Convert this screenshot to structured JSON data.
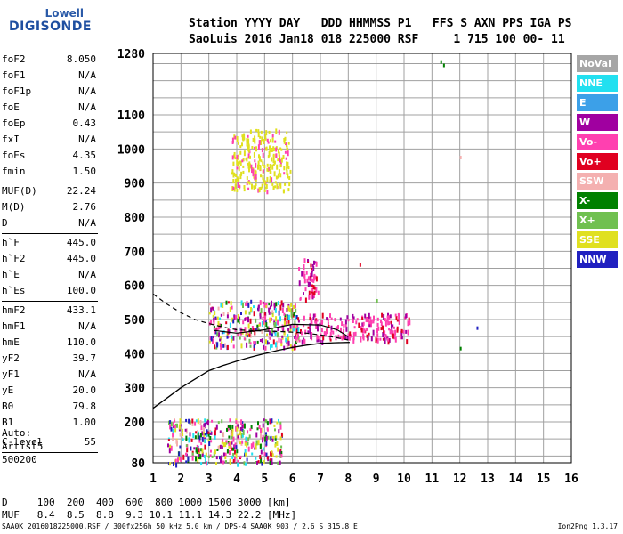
{
  "logo": {
    "line1": "Lowell",
    "line2": "DIGISONDE"
  },
  "header": {
    "line1": "Station YYYY DAY   DDD HHMMSS P1   FFS S AXN PPS IGA PS",
    "line2": "SaoLuis 2016 Jan18 018 225000 RSF     1 715 100 00- 11"
  },
  "params": [
    {
      "k": "foF2",
      "v": "8.050"
    },
    {
      "k": "foF1",
      "v": "N/A"
    },
    {
      "k": "foF1p",
      "v": "N/A"
    },
    {
      "k": "foE",
      "v": "N/A"
    },
    {
      "k": "foEp",
      "v": "0.43"
    },
    {
      "k": "fxI",
      "v": "N/A"
    },
    {
      "k": "foEs",
      "v": "4.35"
    },
    {
      "k": "fmin",
      "v": "1.50"
    },
    {
      "sep": true
    },
    {
      "k": "MUF(D)",
      "v": "22.24"
    },
    {
      "k": "M(D)",
      "v": "2.76"
    },
    {
      "k": "D",
      "v": "N/A"
    },
    {
      "sep": true
    },
    {
      "k": "h`F",
      "v": "445.0"
    },
    {
      "k": "h`F2",
      "v": "445.0"
    },
    {
      "k": "h`E",
      "v": "N/A"
    },
    {
      "k": "h`Es",
      "v": "100.0"
    },
    {
      "sep": true
    },
    {
      "k": "hmF2",
      "v": "433.1"
    },
    {
      "k": "hmF1",
      "v": "N/A"
    },
    {
      "k": "hmE",
      "v": "110.0"
    },
    {
      "k": "yF2",
      "v": "39.7"
    },
    {
      "k": "yF1",
      "v": "N/A"
    },
    {
      "k": "yE",
      "v": "20.0"
    },
    {
      "k": "B0",
      "v": "79.8"
    },
    {
      "k": "B1",
      "v": "1.00"
    },
    {
      "sep": true
    },
    {
      "k": "C-level",
      "v": "55"
    },
    {
      "sep": true
    }
  ],
  "auto": {
    "line1": "Auto:",
    "line2": "Artist5",
    "line3": "500200"
  },
  "legend": [
    {
      "label": "NoVal",
      "color": "#a6a6a6"
    },
    {
      "label": "NNE",
      "color": "#22e0f0"
    },
    {
      "label": "E",
      "color": "#3ca0e8"
    },
    {
      "label": "W",
      "color": "#a000a0"
    },
    {
      "label": "Vo-",
      "color": "#ff40b0"
    },
    {
      "label": "Vo+",
      "color": "#e00020"
    },
    {
      "label": "SSW",
      "color": "#f4b0b0"
    },
    {
      "label": "X-",
      "color": "#008000"
    },
    {
      "label": "X+",
      "color": "#70c050"
    },
    {
      "label": "SSE",
      "color": "#e0e020"
    },
    {
      "label": "NNW",
      "color": "#2020c0"
    }
  ],
  "dtable": {
    "row1": "D     100  200  400  600  800 1000 1500 3000 [km]",
    "row2": "MUF   8.4  8.5  8.8  9.3 10.1 11.1 14.3 22.2 [MHz]"
  },
  "footer": "SAA0K_2016018225000.RSF / 300fx256h 50 kHz 5.0 km / DPS-4 SAA0K 903 / 2.6 S 315.8 E",
  "version": "Ion2Png 1.3.17",
  "chart_data": {
    "type": "scatter",
    "xlabel": "",
    "ylabel": "",
    "xlim": [
      1,
      16
    ],
    "ylim": [
      80,
      1280
    ],
    "x_ticks": [
      1,
      2,
      3,
      4,
      5,
      6,
      7,
      8,
      9,
      10,
      11,
      12,
      13,
      14,
      15,
      16
    ],
    "y_ticks": [
      80,
      200,
      300,
      400,
      500,
      600,
      700,
      800,
      900,
      1000,
      1100,
      1280
    ],
    "grid": true,
    "trace_clusters": [
      {
        "name": "F2 main trace",
        "x": [
          3.0,
          6.2
        ],
        "y": [
          420,
          560
        ]
      },
      {
        "name": "F2 spread",
        "x": [
          6.0,
          10.2
        ],
        "y": [
          440,
          520
        ]
      },
      {
        "name": "F2 high",
        "x": [
          6.2,
          6.9
        ],
        "y": [
          560,
          680
        ]
      },
      {
        "name": "multi-hop",
        "x": [
          3.8,
          5.9
        ],
        "y": [
          880,
          1060
        ]
      },
      {
        "name": "Es low",
        "x": [
          1.5,
          5.6
        ],
        "y": [
          80,
          210
        ]
      }
    ],
    "profile_curve": {
      "x": [
        1.0,
        1.5,
        2.0,
        2.5,
        3.0,
        3.5,
        4.0,
        4.5,
        5.0,
        5.5,
        6.0,
        6.5,
        7.0,
        7.5,
        8.05
      ],
      "y": [
        240,
        270,
        300,
        325,
        350,
        365,
        378,
        390,
        400,
        410,
        418,
        425,
        430,
        432,
        433
      ]
    },
    "dashed_curve": {
      "x": [
        1.0,
        1.5,
        2.0,
        2.5,
        3.0,
        3.5,
        4.0,
        4.5,
        5.0,
        5.5,
        6.0,
        6.5,
        7.0,
        7.5,
        8.0
      ],
      "y": [
        575,
        545,
        520,
        500,
        488,
        478,
        470,
        468,
        466,
        465,
        463,
        460,
        455,
        448,
        440
      ]
    },
    "trace_line": {
      "x": [
        3.2,
        4.0,
        5.0,
        6.0,
        7.0,
        7.6,
        8.0
      ],
      "y": [
        468,
        460,
        470,
        486,
        484,
        470,
        450
      ]
    }
  }
}
